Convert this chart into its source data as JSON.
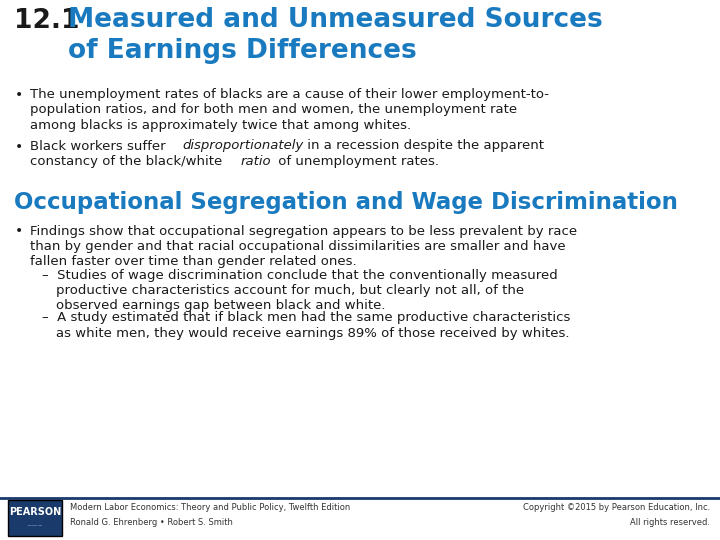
{
  "title_number": "12.1",
  "title_text": "Measured and Unmeasured Sources\nof Earnings Differences",
  "title_number_color": "#1a1a1a",
  "title_text_color": "#1a7abf",
  "section_title": "Occupational Segregation and Wage Discrimination",
  "section_title_color": "#1a7abf",
  "footer_left1": "Modern Labor Economics: Theory and Public Policy, Twelfth Edition",
  "footer_left2": "Ronald G. Ehrenberg • Robert S. Smith",
  "footer_right1": "Copyright ©2015 by Pearson Education, Inc.",
  "footer_right2": "All rights reserved.",
  "footer_logo": "PEARSON",
  "bg_color": "#ffffff",
  "text_color": "#1a1a1a",
  "footer_bg": "#1a3a6b",
  "separator_color": "#1a3a6b"
}
